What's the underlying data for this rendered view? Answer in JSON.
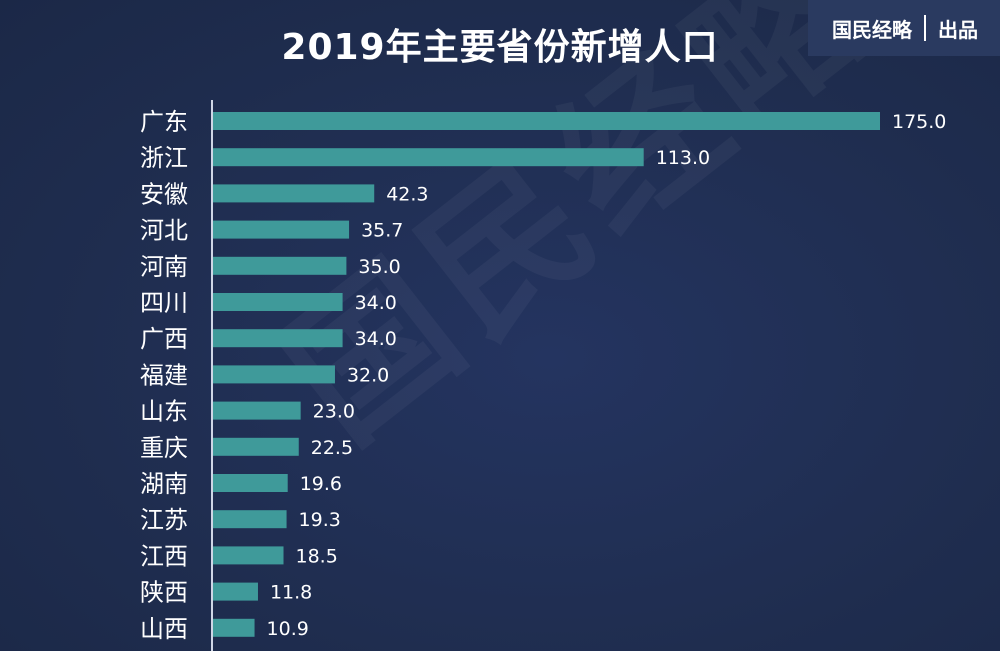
{
  "header": {
    "title": "2019年主要省份新增人口",
    "brand_name": "国民经略",
    "brand_suffix": "出品"
  },
  "watermark": "国民经略",
  "colors": {
    "background": "#1f2d4f",
    "bar": "#3f9a9a",
    "text": "#ffffff"
  },
  "chart_data": {
    "type": "bar",
    "orientation": "horizontal",
    "title": "2019年主要省份新增人口",
    "xlabel": "",
    "ylabel": "",
    "xlim": [
      0,
      175
    ],
    "grid": false,
    "categories": [
      "广东",
      "浙江",
      "安徽",
      "河北",
      "河南",
      "四川",
      "广西",
      "福建",
      "山东",
      "重庆",
      "湖南",
      "江苏",
      "江西",
      "陕西",
      "山西"
    ],
    "values": [
      175.0,
      113.0,
      42.3,
      35.7,
      35.0,
      34.0,
      34.0,
      32.0,
      23.0,
      22.5,
      19.6,
      19.3,
      18.5,
      11.8,
      10.9
    ],
    "value_labels": [
      "175.0",
      "113.0",
      "42.3",
      "35.7",
      "35.0",
      "34.0",
      "34.0",
      "32.0",
      "23.0",
      "22.5",
      "19.6",
      "19.3",
      "18.5",
      "11.8",
      "10.9"
    ]
  }
}
